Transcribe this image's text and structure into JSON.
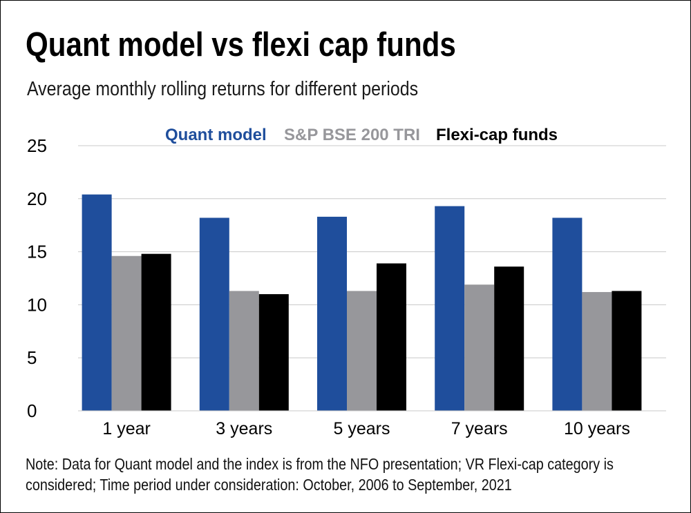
{
  "title": "Quant model vs flexi cap funds",
  "subtitle": "Average monthly rolling returns for different periods",
  "note": "Note: Data for Quant model and the index is from the NFO presentation; VR Flexi-cap category is considered; Time period under consideration: October, 2006 to September, 2021",
  "chart_data": {
    "type": "bar",
    "categories": [
      "1 year",
      "3 years",
      "5 years",
      "7 years",
      "10 years"
    ],
    "series": [
      {
        "name": "Quant model",
        "color": "#1f4e9c",
        "values": [
          20.4,
          18.2,
          18.3,
          19.3,
          18.2
        ]
      },
      {
        "name": "S&P BSE 200 TRI",
        "color": "#97979b",
        "values": [
          14.6,
          11.3,
          11.3,
          11.9,
          11.2
        ]
      },
      {
        "name": "Flexi-cap funds",
        "color": "#000000",
        "values": [
          14.8,
          11.0,
          13.9,
          13.6,
          11.3
        ]
      }
    ],
    "ylim": [
      0,
      25
    ],
    "yticks": [
      0,
      5,
      10,
      15,
      20,
      25
    ],
    "grid": true,
    "legend_position": "top"
  }
}
